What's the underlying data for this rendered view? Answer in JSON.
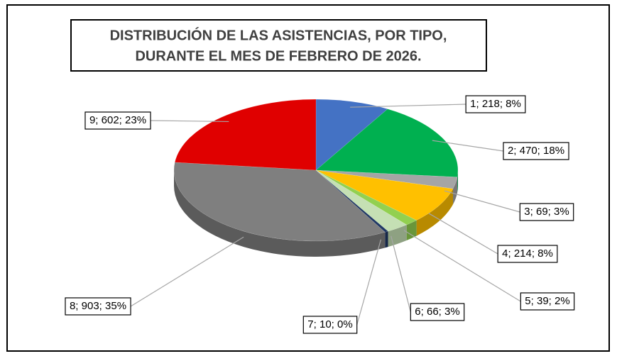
{
  "chart_data": {
    "type": "pie",
    "title": [
      "DISTRIBUCIÓN DE LAS ASISTENCIAS, POR TIPO,",
      "DURANTE EL MES DE FEBRERO DE 2026."
    ],
    "categories": [
      "1",
      "2",
      "3",
      "4",
      "5",
      "6",
      "7",
      "8",
      "9"
    ],
    "values": [
      218,
      470,
      69,
      214,
      39,
      66,
      10,
      903,
      602
    ],
    "value_labels": [
      "1; 218; 8%",
      "2; 470; 18%",
      "3; 69; 3%",
      "4; 214; 8%",
      "5; 39; 2%",
      "6; 66; 3%",
      "7; 10; 0%",
      "8; 903; 35%",
      "9; 602; 23%"
    ],
    "colors": [
      "#4472c4",
      "#00b050",
      "#a5a5a5",
      "#ffc000",
      "#92d050",
      "#c5e0b4",
      "#203864",
      "#7f7f7f",
      "#e00000"
    ]
  }
}
